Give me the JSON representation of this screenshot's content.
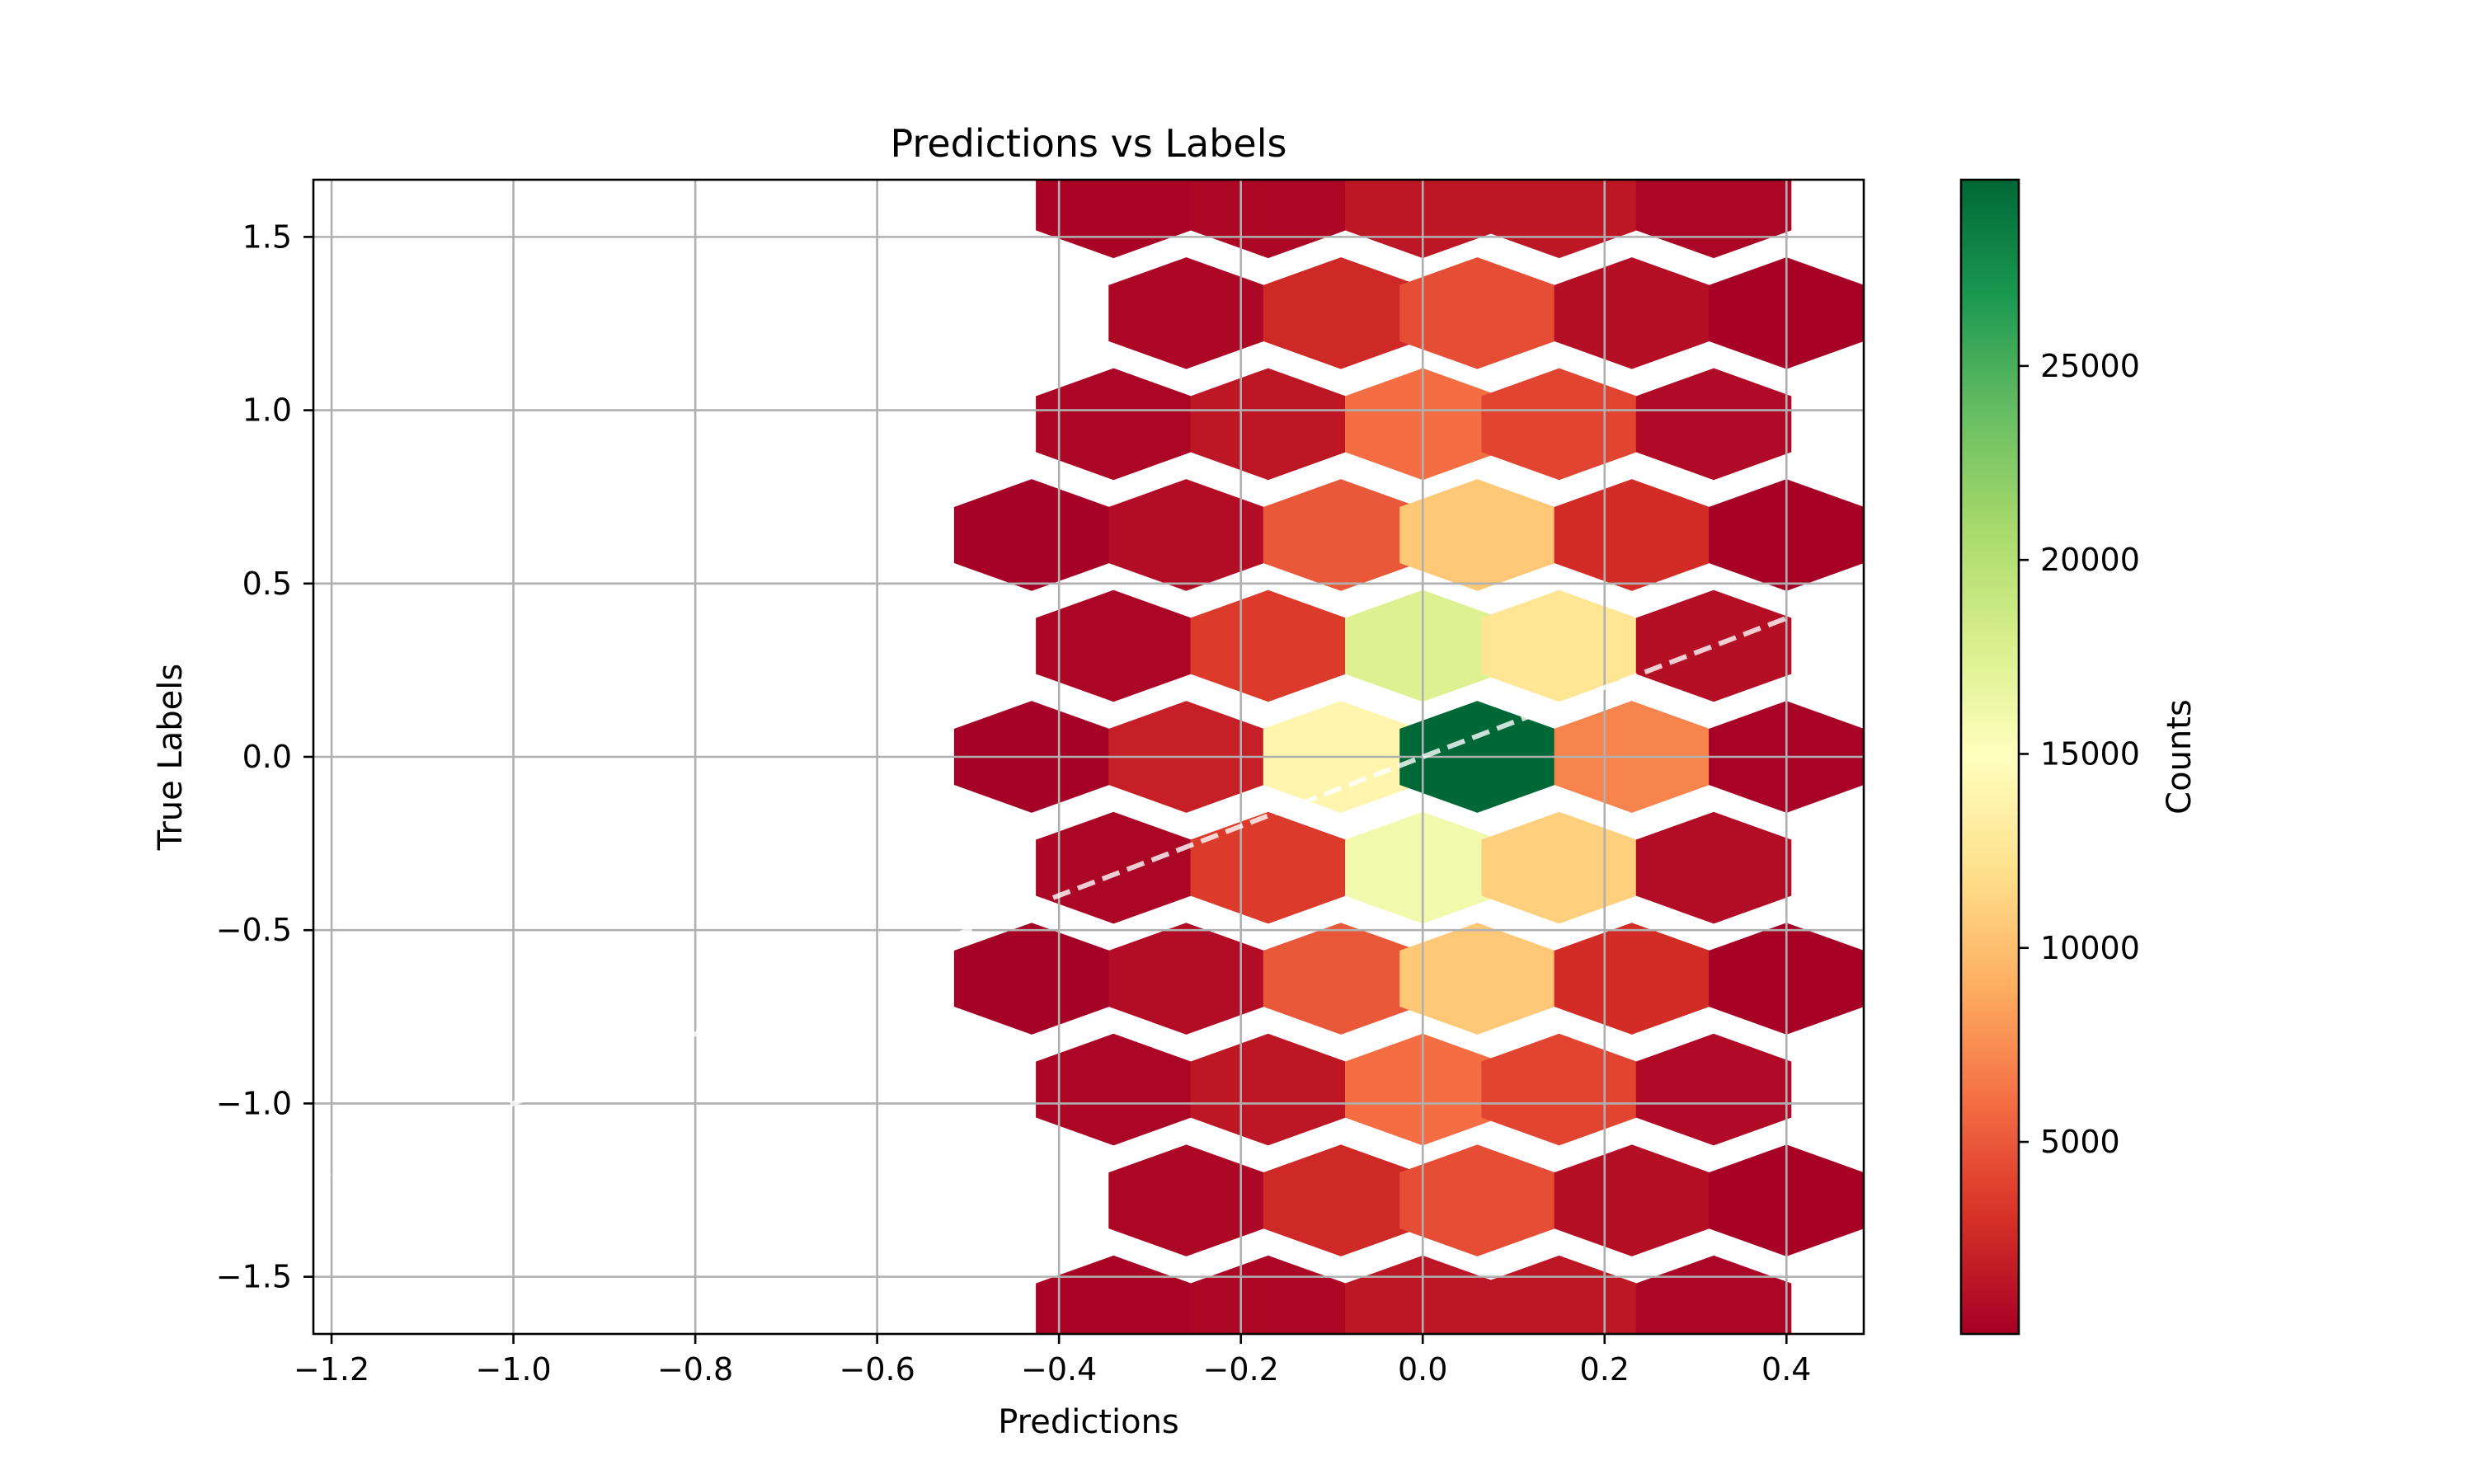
{
  "chart_data": {
    "type": "hexbin",
    "title": "Predictions vs Labels",
    "xlabel": "Predictions",
    "ylabel": "True Labels",
    "xlim": [
      -1.22,
      0.485
    ],
    "ylim": [
      -1.665,
      1.665
    ],
    "xticks": [
      -1.2,
      -1.0,
      -0.8,
      -0.6,
      -0.4,
      -0.2,
      0.0,
      0.2,
      0.4
    ],
    "xtick_labels": [
      "−1.2",
      "−1.0",
      "−0.8",
      "−0.6",
      "−0.4",
      "−0.2",
      "0.0",
      "0.2",
      "0.4"
    ],
    "yticks": [
      1.5,
      1.0,
      0.5,
      0.0,
      -0.5,
      -1.0,
      -1.5
    ],
    "ytick_labels": [
      "1.5",
      "1.0",
      "0.5",
      "0.0",
      "−0.5",
      "−1.0",
      "−1.5"
    ],
    "grid": true,
    "colormap": "RdYlGn",
    "colorbar": {
      "label": "Counts",
      "min": 50,
      "max": 29800,
      "ticks": [
        5000,
        10000,
        15000,
        20000,
        25000
      ],
      "tick_labels": [
        "5000",
        "10000",
        "15000",
        "20000",
        "25000"
      ]
    },
    "hex_size": {
      "x": 0.17,
      "y": 0.32
    },
    "cells": [
      {
        "x": -0.43,
        "y": 0.64,
        "count": 120
      },
      {
        "x": -0.43,
        "y": 0.0,
        "count": 120
      },
      {
        "x": -0.43,
        "y": -0.64,
        "count": 120
      },
      {
        "x": -0.34,
        "y": 1.6,
        "count": 300
      },
      {
        "x": -0.34,
        "y": 0.96,
        "count": 400
      },
      {
        "x": -0.34,
        "y": 0.32,
        "count": 400
      },
      {
        "x": -0.34,
        "y": -0.32,
        "count": 400
      },
      {
        "x": -0.34,
        "y": -0.96,
        "count": 400
      },
      {
        "x": -0.34,
        "y": -1.6,
        "count": 300
      },
      {
        "x": -0.26,
        "y": 1.28,
        "count": 500
      },
      {
        "x": -0.26,
        "y": 0.64,
        "count": 800
      },
      {
        "x": -0.26,
        "y": 0.0,
        "count": 2000
      },
      {
        "x": -0.26,
        "y": -0.64,
        "count": 800
      },
      {
        "x": -0.26,
        "y": -1.28,
        "count": 500
      },
      {
        "x": -0.17,
        "y": 1.6,
        "count": 500
      },
      {
        "x": -0.17,
        "y": 0.96,
        "count": 1500
      },
      {
        "x": -0.17,
        "y": 0.32,
        "count": 3500
      },
      {
        "x": -0.17,
        "y": -0.32,
        "count": 3500
      },
      {
        "x": -0.17,
        "y": -0.96,
        "count": 1500
      },
      {
        "x": -0.17,
        "y": -1.6,
        "count": 500
      },
      {
        "x": -0.09,
        "y": 1.28,
        "count": 2500
      },
      {
        "x": -0.09,
        "y": 0.64,
        "count": 5000
      },
      {
        "x": -0.09,
        "y": 0.0,
        "count": 14000
      },
      {
        "x": -0.09,
        "y": -0.64,
        "count": 5000
      },
      {
        "x": -0.09,
        "y": -1.28,
        "count": 2500
      },
      {
        "x": 0.0,
        "y": 1.6,
        "count": 1500
      },
      {
        "x": 0.0,
        "y": 0.96,
        "count": 6000
      },
      {
        "x": 0.0,
        "y": 0.32,
        "count": 17500
      },
      {
        "x": 0.0,
        "y": -0.32,
        "count": 16000
      },
      {
        "x": 0.0,
        "y": -0.96,
        "count": 6000
      },
      {
        "x": 0.0,
        "y": -1.6,
        "count": 1500
      },
      {
        "x": 0.06,
        "y": 1.28,
        "count": 4500
      },
      {
        "x": 0.06,
        "y": 0.64,
        "count": 10500
      },
      {
        "x": 0.06,
        "y": 0.0,
        "count": 29800
      },
      {
        "x": 0.06,
        "y": -0.64,
        "count": 10500
      },
      {
        "x": 0.06,
        "y": -1.28,
        "count": 4500
      },
      {
        "x": 0.15,
        "y": 1.6,
        "count": 1500
      },
      {
        "x": 0.15,
        "y": 0.96,
        "count": 4000
      },
      {
        "x": 0.15,
        "y": 0.32,
        "count": 12500
      },
      {
        "x": 0.15,
        "y": -0.32,
        "count": 11000
      },
      {
        "x": 0.15,
        "y": -0.96,
        "count": 4000
      },
      {
        "x": 0.15,
        "y": -1.6,
        "count": 1500
      },
      {
        "x": 0.23,
        "y": 1.28,
        "count": 1000
      },
      {
        "x": 0.23,
        "y": 0.64,
        "count": 2800
      },
      {
        "x": 0.23,
        "y": 0.0,
        "count": 7000
      },
      {
        "x": 0.23,
        "y": -0.64,
        "count": 2800
      },
      {
        "x": 0.23,
        "y": -1.28,
        "count": 1000
      },
      {
        "x": 0.32,
        "y": 1.6,
        "count": 400
      },
      {
        "x": 0.32,
        "y": 0.96,
        "count": 700
      },
      {
        "x": 0.32,
        "y": 0.32,
        "count": 1000
      },
      {
        "x": 0.32,
        "y": -0.32,
        "count": 800
      },
      {
        "x": 0.32,
        "y": -0.96,
        "count": 700
      },
      {
        "x": 0.32,
        "y": -1.6,
        "count": 400
      },
      {
        "x": 0.4,
        "y": 1.28,
        "count": 150
      },
      {
        "x": 0.4,
        "y": 0.64,
        "count": 150
      },
      {
        "x": 0.4,
        "y": 0.0,
        "count": 200
      },
      {
        "x": 0.4,
        "y": -0.64,
        "count": 150
      },
      {
        "x": 0.4,
        "y": -1.28,
        "count": 150
      }
    ],
    "reference_line": {
      "style": "dashed",
      "color": "#ffffff",
      "x": [
        -1.22,
        0.4
      ],
      "y": [
        -1.22,
        0.4
      ]
    }
  }
}
